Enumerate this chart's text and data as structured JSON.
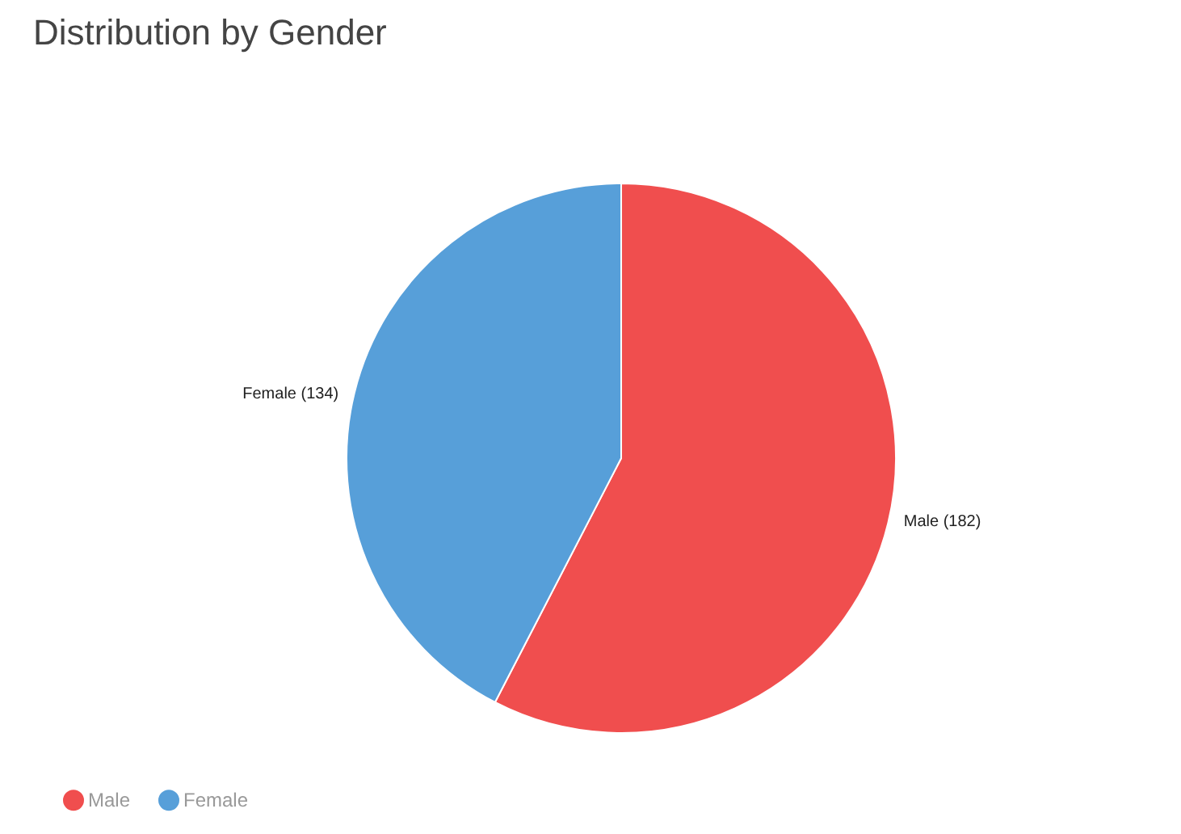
{
  "chart_data": {
    "type": "pie",
    "title": "Distribution by Gender",
    "categories": [
      "Male",
      "Female"
    ],
    "values": [
      182,
      134
    ],
    "colors": [
      "#f04e4e",
      "#579fd9"
    ],
    "value_labels": [
      "Male (182)",
      "Female (134)"
    ],
    "legend": "bottom left"
  }
}
